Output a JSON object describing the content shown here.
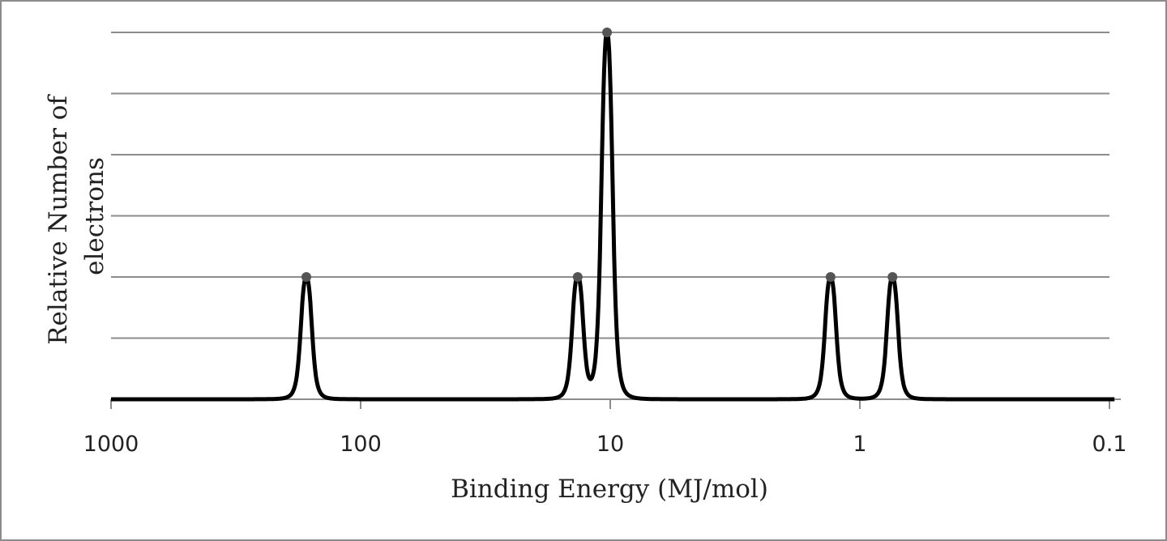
{
  "chart_data": {
    "type": "line",
    "title": "",
    "xlabel": "Binding Energy (MJ/mol)",
    "ylabel_lines": [
      "Relative Number of",
      "electrons"
    ],
    "x_scale": "log",
    "x_reversed": true,
    "xlim": [
      1000,
      0.1
    ],
    "ylim": [
      0,
      6
    ],
    "y_gridlines": [
      1,
      2,
      3,
      4,
      5,
      6
    ],
    "x_ticks": [
      {
        "value": 1000,
        "label": "1000"
      },
      {
        "value": 100,
        "label": "100"
      },
      {
        "value": 10,
        "label": "10"
      },
      {
        "value": 1,
        "label": "1"
      },
      {
        "value": 0.1,
        "label": "0.1"
      }
    ],
    "peaks": [
      {
        "x": 165,
        "y": 2
      },
      {
        "x": 13.5,
        "y": 2
      },
      {
        "x": 10.3,
        "y": 6
      },
      {
        "x": 1.31,
        "y": 2
      },
      {
        "x": 0.74,
        "y": 2
      }
    ],
    "grid": true,
    "legend": "none",
    "colors": {
      "line": "#000000",
      "grid": "#8c8c8c",
      "marker": "#555555"
    }
  }
}
